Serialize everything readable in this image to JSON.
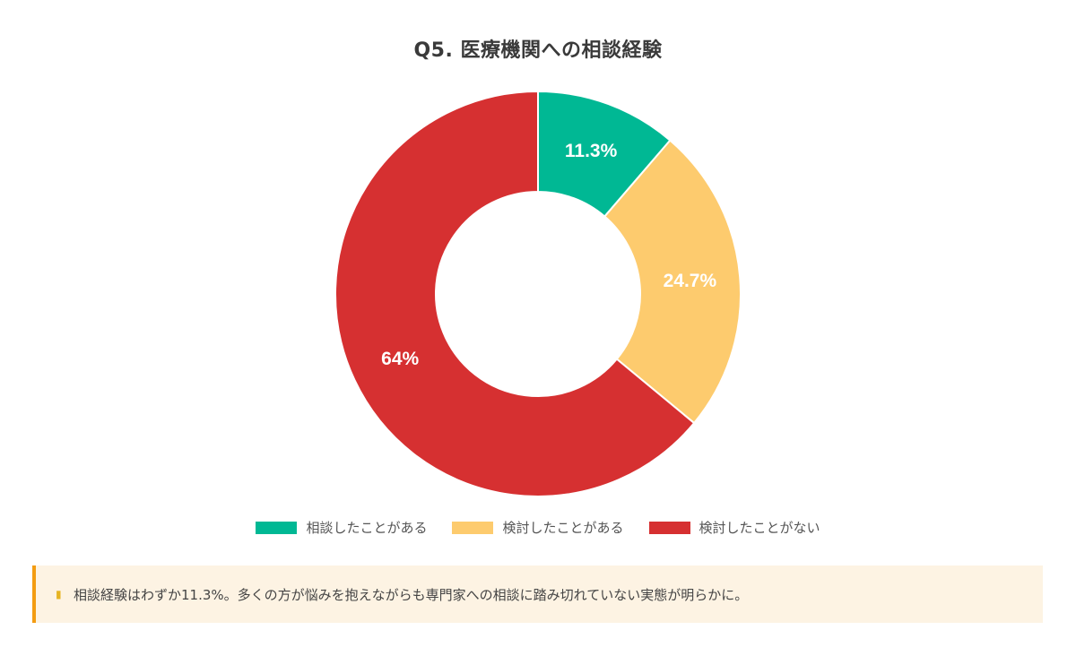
{
  "chart_data": {
    "type": "pie",
    "title": "Q5. 医療機関への相談経験",
    "categories": [
      "相談したことがある",
      "検討したことがある",
      "検討したことがない"
    ],
    "values": [
      11.3,
      24.7,
      64
    ],
    "data_labels": [
      "11.3%",
      "24.7%",
      "64%"
    ],
    "colors": [
      "#00b894",
      "#fdcb6e",
      "#d63031"
    ],
    "donut": true,
    "legend_position": "bottom"
  },
  "note": {
    "icon": "lightbulb-icon",
    "text": "相談経験はわずか11.3%。多くの方が悩みを抱えながらも専門家への相談に踏み切れていない実態が明らかに。"
  }
}
